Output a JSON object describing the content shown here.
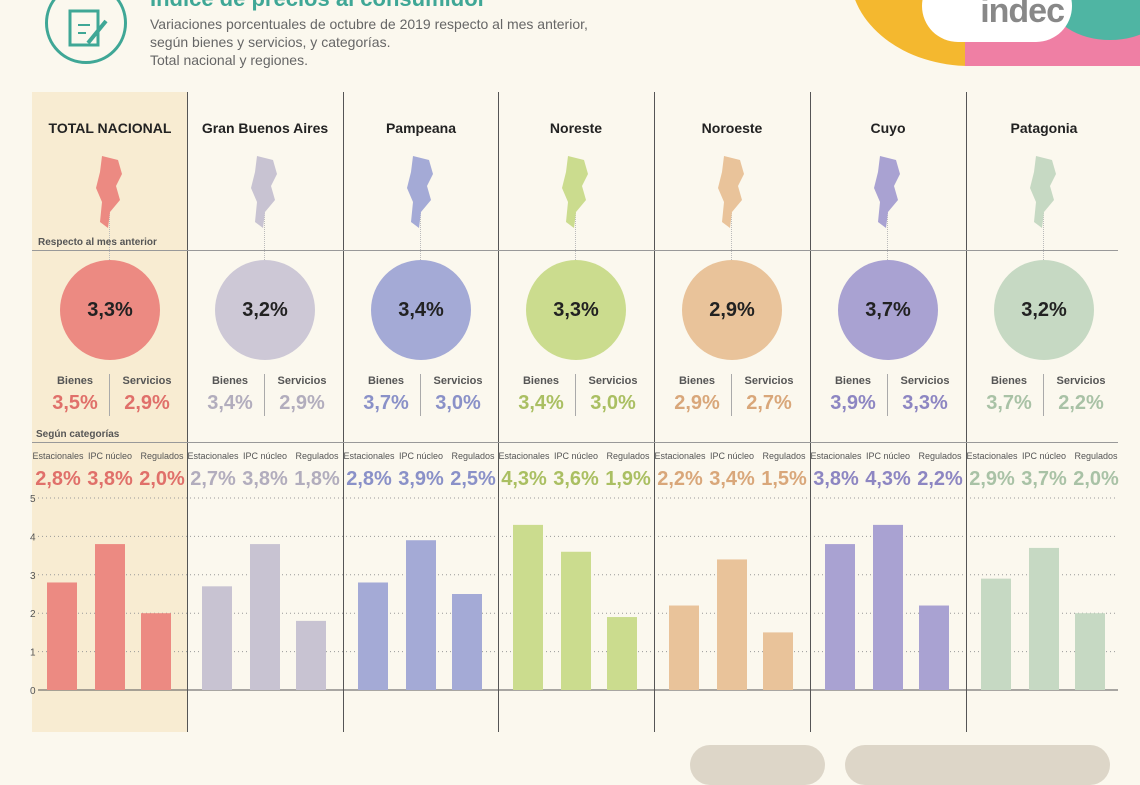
{
  "header": {
    "title": "Índice de precios al consumidor",
    "subtitle_lines": [
      "Variaciones porcentuales de octubre de 2019 respecto al mes anterior,",
      "según bienes y servicios, y categorías.",
      "Total nacional y regiones."
    ],
    "logo_text": "indec"
  },
  "labels": {
    "respecto": "Respecto al mes anterior",
    "segun": "Según categorías",
    "bienes": "Bienes",
    "servicios": "Servicios",
    "estacionales": "Estacionales",
    "ipc_nucleo": "IPC núcleo",
    "regulados": "Regulados"
  },
  "regions": [
    {
      "name": "TOTAL NACIONAL",
      "total": "3,3%",
      "bienes": "3,5%",
      "servicios": "2,9%",
      "estacionales": "2,8%",
      "nucleo": "3,8%",
      "regulados": "2,0%",
      "color": "#ec8a82",
      "text_color": "#e0706a",
      "circle_color": "#ec8a82"
    },
    {
      "name": "Gran Buenos Aires",
      "total": "3,2%",
      "bienes": "3,4%",
      "servicios": "2,9%",
      "estacionales": "2,7%",
      "nucleo": "3,8%",
      "regulados": "1,8%",
      "color": "#c8c3d2",
      "text_color": "#b2adbd",
      "circle_color": "#cdc8d6"
    },
    {
      "name": "Pampeana",
      "total": "3,4%",
      "bienes": "3,7%",
      "servicios": "3,0%",
      "estacionales": "2,8%",
      "nucleo": "3,9%",
      "regulados": "2,5%",
      "color": "#a4aad6",
      "text_color": "#8a91c8",
      "circle_color": "#a4aad6"
    },
    {
      "name": "Noreste",
      "total": "3,3%",
      "bienes": "3,4%",
      "servicios": "3,0%",
      "estacionales": "4,3%",
      "nucleo": "3,6%",
      "regulados": "1,9%",
      "color": "#cbdc8e",
      "text_color": "#aabf62",
      "circle_color": "#cbdc8e"
    },
    {
      "name": "Noroeste",
      "total": "2,9%",
      "bienes": "2,9%",
      "servicios": "2,7%",
      "estacionales": "2,2%",
      "nucleo": "3,4%",
      "regulados": "1,5%",
      "color": "#e9c39a",
      "text_color": "#d9a77a",
      "circle_color": "#e9c39a"
    },
    {
      "name": "Cuyo",
      "total": "3,7%",
      "bienes": "3,9%",
      "servicios": "3,3%",
      "estacionales": "3,8%",
      "nucleo": "4,3%",
      "regulados": "2,2%",
      "color": "#a9a2d2",
      "text_color": "#8d86c2",
      "circle_color": "#a9a2d2"
    },
    {
      "name": "Patagonia",
      "total": "3,2%",
      "bienes": "3,7%",
      "servicios": "2,2%",
      "estacionales": "2,9%",
      "nucleo": "3,7%",
      "regulados": "2,0%",
      "color": "#c6d9c3",
      "text_color": "#a9c2a6",
      "circle_color": "#c6d9c3"
    }
  ],
  "chart_data": {
    "type": "bar",
    "categories": [
      "Estacionales",
      "IPC núcleo",
      "Regulados"
    ],
    "series": [
      {
        "name": "TOTAL NACIONAL",
        "values": [
          2.8,
          3.8,
          2.0
        ]
      },
      {
        "name": "Gran Buenos Aires",
        "values": [
          2.7,
          3.8,
          1.8
        ]
      },
      {
        "name": "Pampeana",
        "values": [
          2.8,
          3.9,
          2.5
        ]
      },
      {
        "name": "Noreste",
        "values": [
          4.3,
          3.6,
          1.9
        ]
      },
      {
        "name": "Noroeste",
        "values": [
          2.2,
          3.4,
          1.5
        ]
      },
      {
        "name": "Cuyo",
        "values": [
          3.8,
          4.3,
          2.2
        ]
      },
      {
        "name": "Patagonia",
        "values": [
          2.9,
          3.7,
          2.0
        ]
      }
    ],
    "ylim": [
      0,
      5
    ],
    "yticks": [
      "0",
      "1",
      "2",
      "3",
      "4",
      "5"
    ],
    "grid": true
  }
}
